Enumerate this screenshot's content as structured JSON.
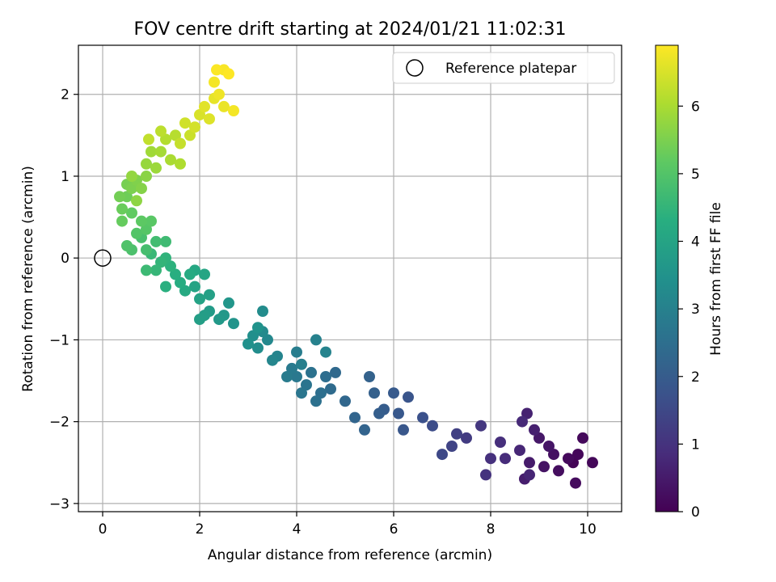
{
  "chart_data": {
    "type": "scatter",
    "title": "FOV centre drift starting at 2024/01/21 11:02:31",
    "xlabel": "Angular distance from reference (arcmin)",
    "ylabel": "Rotation from reference (arcmin)",
    "xlim": [
      -0.5,
      10.7
    ],
    "ylim": [
      -3.1,
      2.6
    ],
    "x_ticks": [
      0,
      2,
      4,
      6,
      8,
      10
    ],
    "y_ticks": [
      -3,
      -2,
      -1,
      0,
      1,
      2
    ],
    "grid": true,
    "legend": {
      "placement": "top-right",
      "entries": [
        "Reference platepar"
      ]
    },
    "reference_point": {
      "x": 0,
      "y": 0,
      "label": "Reference platepar"
    },
    "colorbar": {
      "label": "Hours from first FF file",
      "colormap": "viridis",
      "range": [
        0,
        6.9
      ],
      "ticks": [
        0,
        1,
        2,
        3,
        4,
        5,
        6
      ]
    },
    "points": [
      [
        9.7,
        -2.5,
        0.05
      ],
      [
        9.8,
        -2.4,
        0.1
      ],
      [
        10.1,
        -2.5,
        0.12
      ],
      [
        9.9,
        -2.2,
        0.15
      ],
      [
        9.6,
        -2.45,
        0.18
      ],
      [
        9.75,
        -2.75,
        0.2
      ],
      [
        9.4,
        -2.6,
        0.25
      ],
      [
        9.3,
        -2.4,
        0.3
      ],
      [
        9.1,
        -2.55,
        0.35
      ],
      [
        9.2,
        -2.3,
        0.4
      ],
      [
        9.0,
        -2.2,
        0.45
      ],
      [
        8.8,
        -2.5,
        0.5
      ],
      [
        8.7,
        -2.7,
        0.55
      ],
      [
        8.9,
        -2.1,
        0.6
      ],
      [
        8.75,
        -1.9,
        0.65
      ],
      [
        8.8,
        -2.65,
        0.7
      ],
      [
        8.6,
        -2.35,
        0.75
      ],
      [
        8.65,
        -2.0,
        0.8
      ],
      [
        8.3,
        -2.45,
        0.85
      ],
      [
        8.2,
        -2.25,
        0.9
      ],
      [
        8.0,
        -2.45,
        0.95
      ],
      [
        7.9,
        -2.65,
        1.0
      ],
      [
        7.8,
        -2.05,
        1.1
      ],
      [
        7.5,
        -2.2,
        1.2
      ],
      [
        7.3,
        -2.15,
        1.3
      ],
      [
        7.2,
        -2.3,
        1.4
      ],
      [
        7.0,
        -2.4,
        1.5
      ],
      [
        6.8,
        -2.05,
        1.6
      ],
      [
        6.6,
        -1.95,
        1.7
      ],
      [
        6.3,
        -1.7,
        1.8
      ],
      [
        6.2,
        -2.1,
        1.85
      ],
      [
        6.1,
        -1.9,
        1.9
      ],
      [
        6.0,
        -1.65,
        1.95
      ],
      [
        5.8,
        -1.85,
        2.0
      ],
      [
        5.7,
        -1.9,
        2.05
      ],
      [
        5.6,
        -1.65,
        2.1
      ],
      [
        5.5,
        -1.45,
        2.15
      ],
      [
        5.4,
        -2.1,
        2.2
      ],
      [
        5.2,
        -1.95,
        2.25
      ],
      [
        5.0,
        -1.75,
        2.3
      ],
      [
        4.8,
        -1.4,
        2.35
      ],
      [
        4.7,
        -1.6,
        2.4
      ],
      [
        4.6,
        -1.45,
        2.45
      ],
      [
        4.5,
        -1.65,
        2.5
      ],
      [
        4.4,
        -1.75,
        2.55
      ],
      [
        4.3,
        -1.4,
        2.6
      ],
      [
        4.2,
        -1.55,
        2.65
      ],
      [
        4.1,
        -1.65,
        2.7
      ],
      [
        4.0,
        -1.45,
        2.75
      ],
      [
        3.9,
        -1.35,
        2.8
      ],
      [
        3.8,
        -1.45,
        2.85
      ],
      [
        4.0,
        -1.15,
        2.9
      ],
      [
        4.1,
        -1.3,
        2.95
      ],
      [
        4.4,
        -1.0,
        3.0
      ],
      [
        4.6,
        -1.15,
        3.05
      ],
      [
        3.6,
        -1.2,
        3.1
      ],
      [
        3.5,
        -1.25,
        3.15
      ],
      [
        3.4,
        -1.0,
        3.2
      ],
      [
        3.3,
        -0.9,
        3.25
      ],
      [
        3.3,
        -0.65,
        3.3
      ],
      [
        3.2,
        -1.1,
        3.35
      ],
      [
        3.1,
        -0.95,
        3.4
      ],
      [
        3.0,
        -1.05,
        3.45
      ],
      [
        3.2,
        -0.85,
        3.5
      ],
      [
        2.7,
        -0.8,
        3.55
      ],
      [
        2.6,
        -0.55,
        3.6
      ],
      [
        2.5,
        -0.7,
        3.65
      ],
      [
        2.4,
        -0.75,
        3.7
      ],
      [
        2.2,
        -0.65,
        3.75
      ],
      [
        2.1,
        -0.7,
        3.8
      ],
      [
        2.0,
        -0.75,
        3.85
      ],
      [
        2.2,
        -0.45,
        3.9
      ],
      [
        2.0,
        -0.5,
        3.95
      ],
      [
        1.9,
        -0.35,
        4.0
      ],
      [
        2.1,
        -0.2,
        4.05
      ],
      [
        1.9,
        -0.15,
        4.1
      ],
      [
        1.7,
        -0.4,
        4.15
      ],
      [
        1.8,
        -0.2,
        4.2
      ],
      [
        1.6,
        -0.3,
        4.25
      ],
      [
        1.5,
        -0.2,
        4.3
      ],
      [
        1.3,
        -0.35,
        4.35
      ],
      [
        1.4,
        -0.1,
        4.4
      ],
      [
        1.3,
        0.0,
        4.45
      ],
      [
        1.2,
        -0.05,
        4.5
      ],
      [
        1.1,
        -0.15,
        4.55
      ],
      [
        1.0,
        0.05,
        4.6
      ],
      [
        0.9,
        -0.15,
        4.65
      ],
      [
        1.3,
        0.2,
        4.7
      ],
      [
        1.1,
        0.2,
        4.75
      ],
      [
        0.9,
        0.1,
        4.8
      ],
      [
        0.8,
        0.25,
        4.85
      ],
      [
        0.6,
        0.1,
        4.9
      ],
      [
        0.5,
        0.15,
        4.95
      ],
      [
        0.7,
        0.3,
        5.0
      ],
      [
        0.9,
        0.35,
        5.05
      ],
      [
        1.0,
        0.45,
        5.1
      ],
      [
        0.8,
        0.45,
        5.15
      ],
      [
        0.6,
        0.55,
        5.2
      ],
      [
        0.4,
        0.45,
        5.25
      ],
      [
        0.4,
        0.6,
        5.3
      ],
      [
        0.5,
        0.75,
        5.35
      ],
      [
        0.35,
        0.75,
        5.4
      ],
      [
        0.5,
        0.9,
        5.45
      ],
      [
        0.6,
        0.85,
        5.5
      ],
      [
        0.7,
        0.95,
        5.55
      ],
      [
        0.8,
        0.85,
        5.6
      ],
      [
        0.9,
        1.0,
        5.65
      ],
      [
        0.7,
        0.7,
        5.7
      ],
      [
        0.6,
        1.0,
        5.75
      ],
      [
        0.9,
        1.15,
        5.8
      ],
      [
        1.1,
        1.1,
        5.85
      ],
      [
        1.0,
        1.3,
        5.9
      ],
      [
        1.2,
        1.3,
        5.95
      ],
      [
        1.4,
        1.2,
        6.0
      ],
      [
        1.6,
        1.15,
        6.05
      ],
      [
        1.3,
        1.45,
        6.1
      ],
      [
        1.5,
        1.5,
        6.15
      ],
      [
        1.2,
        1.55,
        6.2
      ],
      [
        0.95,
        1.45,
        6.25
      ],
      [
        1.6,
        1.4,
        6.3
      ],
      [
        1.8,
        1.5,
        6.35
      ],
      [
        1.7,
        1.65,
        6.4
      ],
      [
        1.9,
        1.6,
        6.45
      ],
      [
        2.0,
        1.75,
        6.5
      ],
      [
        2.2,
        1.7,
        6.55
      ],
      [
        2.1,
        1.85,
        6.6
      ],
      [
        2.3,
        1.95,
        6.65
      ],
      [
        2.5,
        1.85,
        6.7
      ],
      [
        2.4,
        2.0,
        6.75
      ],
      [
        2.7,
        1.8,
        6.8
      ],
      [
        2.3,
        2.15,
        6.8
      ],
      [
        2.5,
        2.3,
        6.85
      ],
      [
        2.35,
        2.3,
        6.88
      ],
      [
        2.6,
        2.25,
        6.9
      ]
    ]
  }
}
